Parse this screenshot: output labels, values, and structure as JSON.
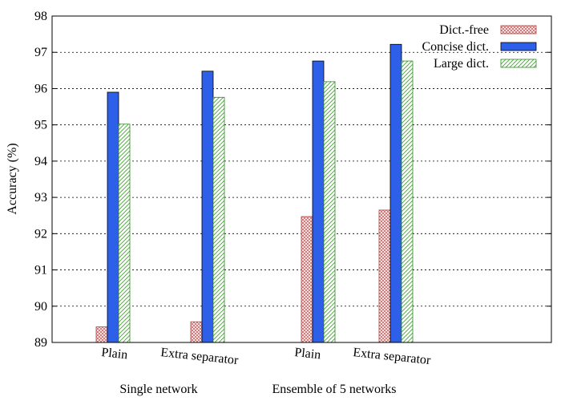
{
  "chart_data": {
    "type": "bar",
    "ylabel": "Accuracy (%)",
    "ylim": [
      89,
      98
    ],
    "yticks": [
      "89",
      "90",
      "91",
      "92",
      "93",
      "94",
      "95",
      "96",
      "97",
      "98"
    ],
    "grid": "dotted horizontal",
    "legend_position": "top-right",
    "categories": [
      "Plain",
      "Extra separator",
      "Plain",
      "Extra separator"
    ],
    "groups": [
      {
        "label": "Single network",
        "categories": [
          0,
          1
        ]
      },
      {
        "label": "Ensemble of 5 networks",
        "categories": [
          2,
          3
        ]
      }
    ],
    "series": [
      {
        "name": "Dict.-free",
        "values": [
          89.43,
          89.57,
          92.47,
          92.65
        ],
        "color": "#e89a9a",
        "pattern": "crosshatch-red"
      },
      {
        "name": "Concise dict.",
        "values": [
          95.9,
          96.48,
          96.76,
          97.22
        ],
        "color": "#2e5fe8",
        "pattern": "solid-blue"
      },
      {
        "name": "Large dict.",
        "values": [
          95.02,
          95.76,
          96.19,
          96.76
        ],
        "color": "#4cae3c",
        "pattern": "hatch-green"
      }
    ]
  }
}
